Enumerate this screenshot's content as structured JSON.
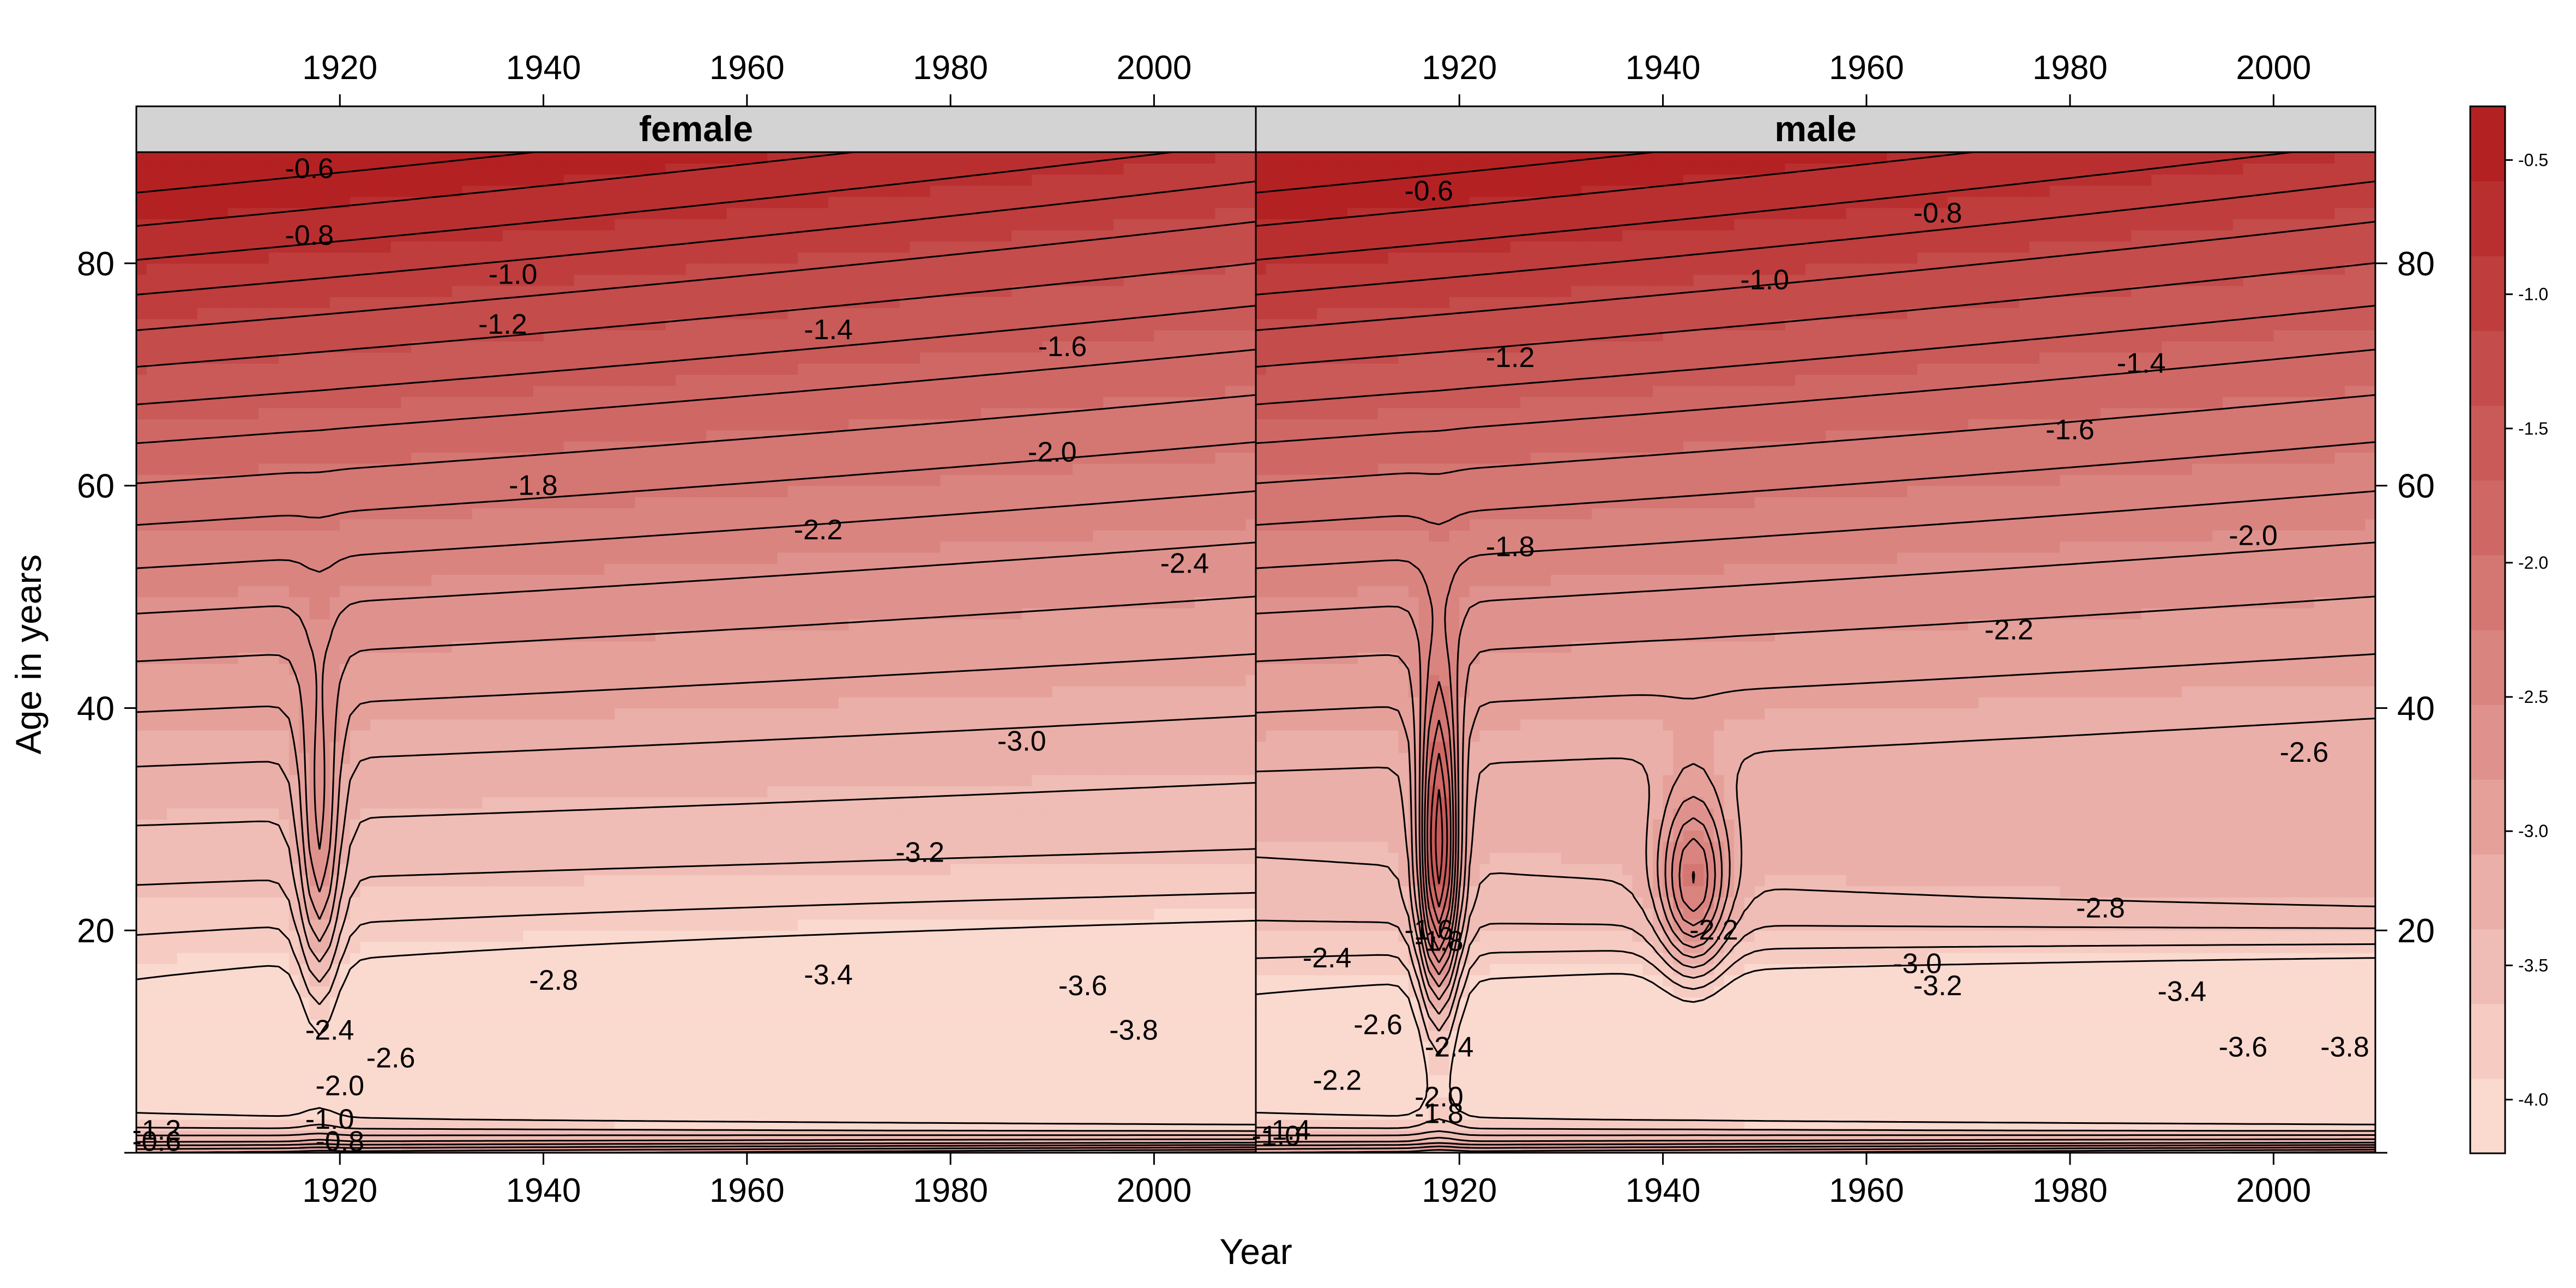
{
  "colors": {
    "strip_background": "#d3d3d3",
    "palette_high": "#b11a1c",
    "palette_low": "#fde0d6",
    "contour_line": "#000000"
  },
  "chart_data": {
    "type": "heatmap",
    "subtype": "filled contour (levelplot) with contour lines",
    "xlabel": "Year",
    "ylabel": "Age in years",
    "xlim": [
      1900,
      2010
    ],
    "ylim": [
      0,
      90
    ],
    "x_ticks": [
      1920,
      1940,
      1960,
      1980,
      2000
    ],
    "y_ticks": [
      20,
      40,
      60,
      80
    ],
    "colorkey": {
      "ticks": [
        -0.5,
        -1.0,
        -1.5,
        -2.0,
        -2.5,
        -3.0,
        -3.5,
        -4.0
      ],
      "tick_labels": [
        "-0.5",
        "-1.0",
        "-1.5",
        "-2.0",
        "-2.5",
        "-3.0",
        "-3.5",
        "-4.0"
      ],
      "range": [
        -4.2,
        -0.3
      ],
      "bands": 14
    },
    "panels": [
      {
        "strip": "female",
        "contour_labels": [
          {
            "text": "-0.6",
            "x": 1917,
            "y": 88.5
          },
          {
            "text": "-0.8",
            "x": 1917,
            "y": 82.5
          },
          {
            "text": "-1.0",
            "x": 1937,
            "y": 79
          },
          {
            "text": "-1.2",
            "x": 1936,
            "y": 74.5
          },
          {
            "text": "-1.4",
            "x": 1968,
            "y": 74
          },
          {
            "text": "-1.6",
            "x": 1991,
            "y": 72.5
          },
          {
            "text": "-1.8",
            "x": 1939,
            "y": 60
          },
          {
            "text": "-2.0",
            "x": 1990,
            "y": 63
          },
          {
            "text": "-2.2",
            "x": 1967,
            "y": 56
          },
          {
            "text": "-2.4",
            "x": 2003,
            "y": 53
          },
          {
            "text": "-2.6",
            "x": 1925,
            "y": 8.5
          },
          {
            "text": "-2.8",
            "x": 1941,
            "y": 15.5
          },
          {
            "text": "-3.0",
            "x": 1987,
            "y": 37
          },
          {
            "text": "-3.2",
            "x": 1977,
            "y": 27
          },
          {
            "text": "-3.4",
            "x": 1968,
            "y": 16
          },
          {
            "text": "-3.6",
            "x": 1993,
            "y": 15
          },
          {
            "text": "-3.8",
            "x": 1998,
            "y": 11
          },
          {
            "text": "-2.4",
            "x": 1919,
            "y": 11
          },
          {
            "text": "-2.0",
            "x": 1920,
            "y": 6
          },
          {
            "text": "-1.0",
            "x": 1919,
            "y": 3
          },
          {
            "text": "-1.2",
            "x": 1902,
            "y": 2
          },
          {
            "text": "-0.8",
            "x": 1920,
            "y": 1
          },
          {
            "text": "-0.6",
            "x": 1902,
            "y": 1
          }
        ]
      },
      {
        "strip": "male",
        "contour_labels": [
          {
            "text": "-0.6",
            "x": 1917,
            "y": 86.5
          },
          {
            "text": "-0.8",
            "x": 1967,
            "y": 84.5
          },
          {
            "text": "-1.0",
            "x": 1950,
            "y": 78.5
          },
          {
            "text": "-1.2",
            "x": 1925,
            "y": 71.5
          },
          {
            "text": "-1.4",
            "x": 1987,
            "y": 71
          },
          {
            "text": "-1.6",
            "x": 1980,
            "y": 65
          },
          {
            "text": "-1.8",
            "x": 1925,
            "y": 54.5
          },
          {
            "text": "-2.0",
            "x": 1998,
            "y": 55.5
          },
          {
            "text": "-2.2",
            "x": 1974,
            "y": 47
          },
          {
            "text": "-2.6",
            "x": 2003,
            "y": 36
          },
          {
            "text": "-2.8",
            "x": 1983,
            "y": 22
          },
          {
            "text": "-3.0",
            "x": 1965,
            "y": 17
          },
          {
            "text": "-3.2",
            "x": 1967,
            "y": 15
          },
          {
            "text": "-3.4",
            "x": 1991,
            "y": 14.5
          },
          {
            "text": "-3.6",
            "x": 1997,
            "y": 9.5
          },
          {
            "text": "-3.8",
            "x": 2007,
            "y": 9.5
          },
          {
            "text": "-2.4",
            "x": 1907,
            "y": 17.5
          },
          {
            "text": "-2.6",
            "x": 1912,
            "y": 11.5
          },
          {
            "text": "-2.4",
            "x": 1919,
            "y": 9.5
          },
          {
            "text": "-2.2",
            "x": 1908,
            "y": 6.5
          },
          {
            "text": "-2.0",
            "x": 1918,
            "y": 5
          },
          {
            "text": "-1.8",
            "x": 1918,
            "y": 3.5
          },
          {
            "text": "-1.6",
            "x": 1917,
            "y": 20
          },
          {
            "text": "-1.8",
            "x": 1918,
            "y": 19
          },
          {
            "text": "-2.2",
            "x": 1945,
            "y": 20
          },
          {
            "text": "-1.4",
            "x": 1903,
            "y": 2
          },
          {
            "text": "-1.0",
            "x": 1902,
            "y": 1.5
          }
        ]
      }
    ]
  }
}
